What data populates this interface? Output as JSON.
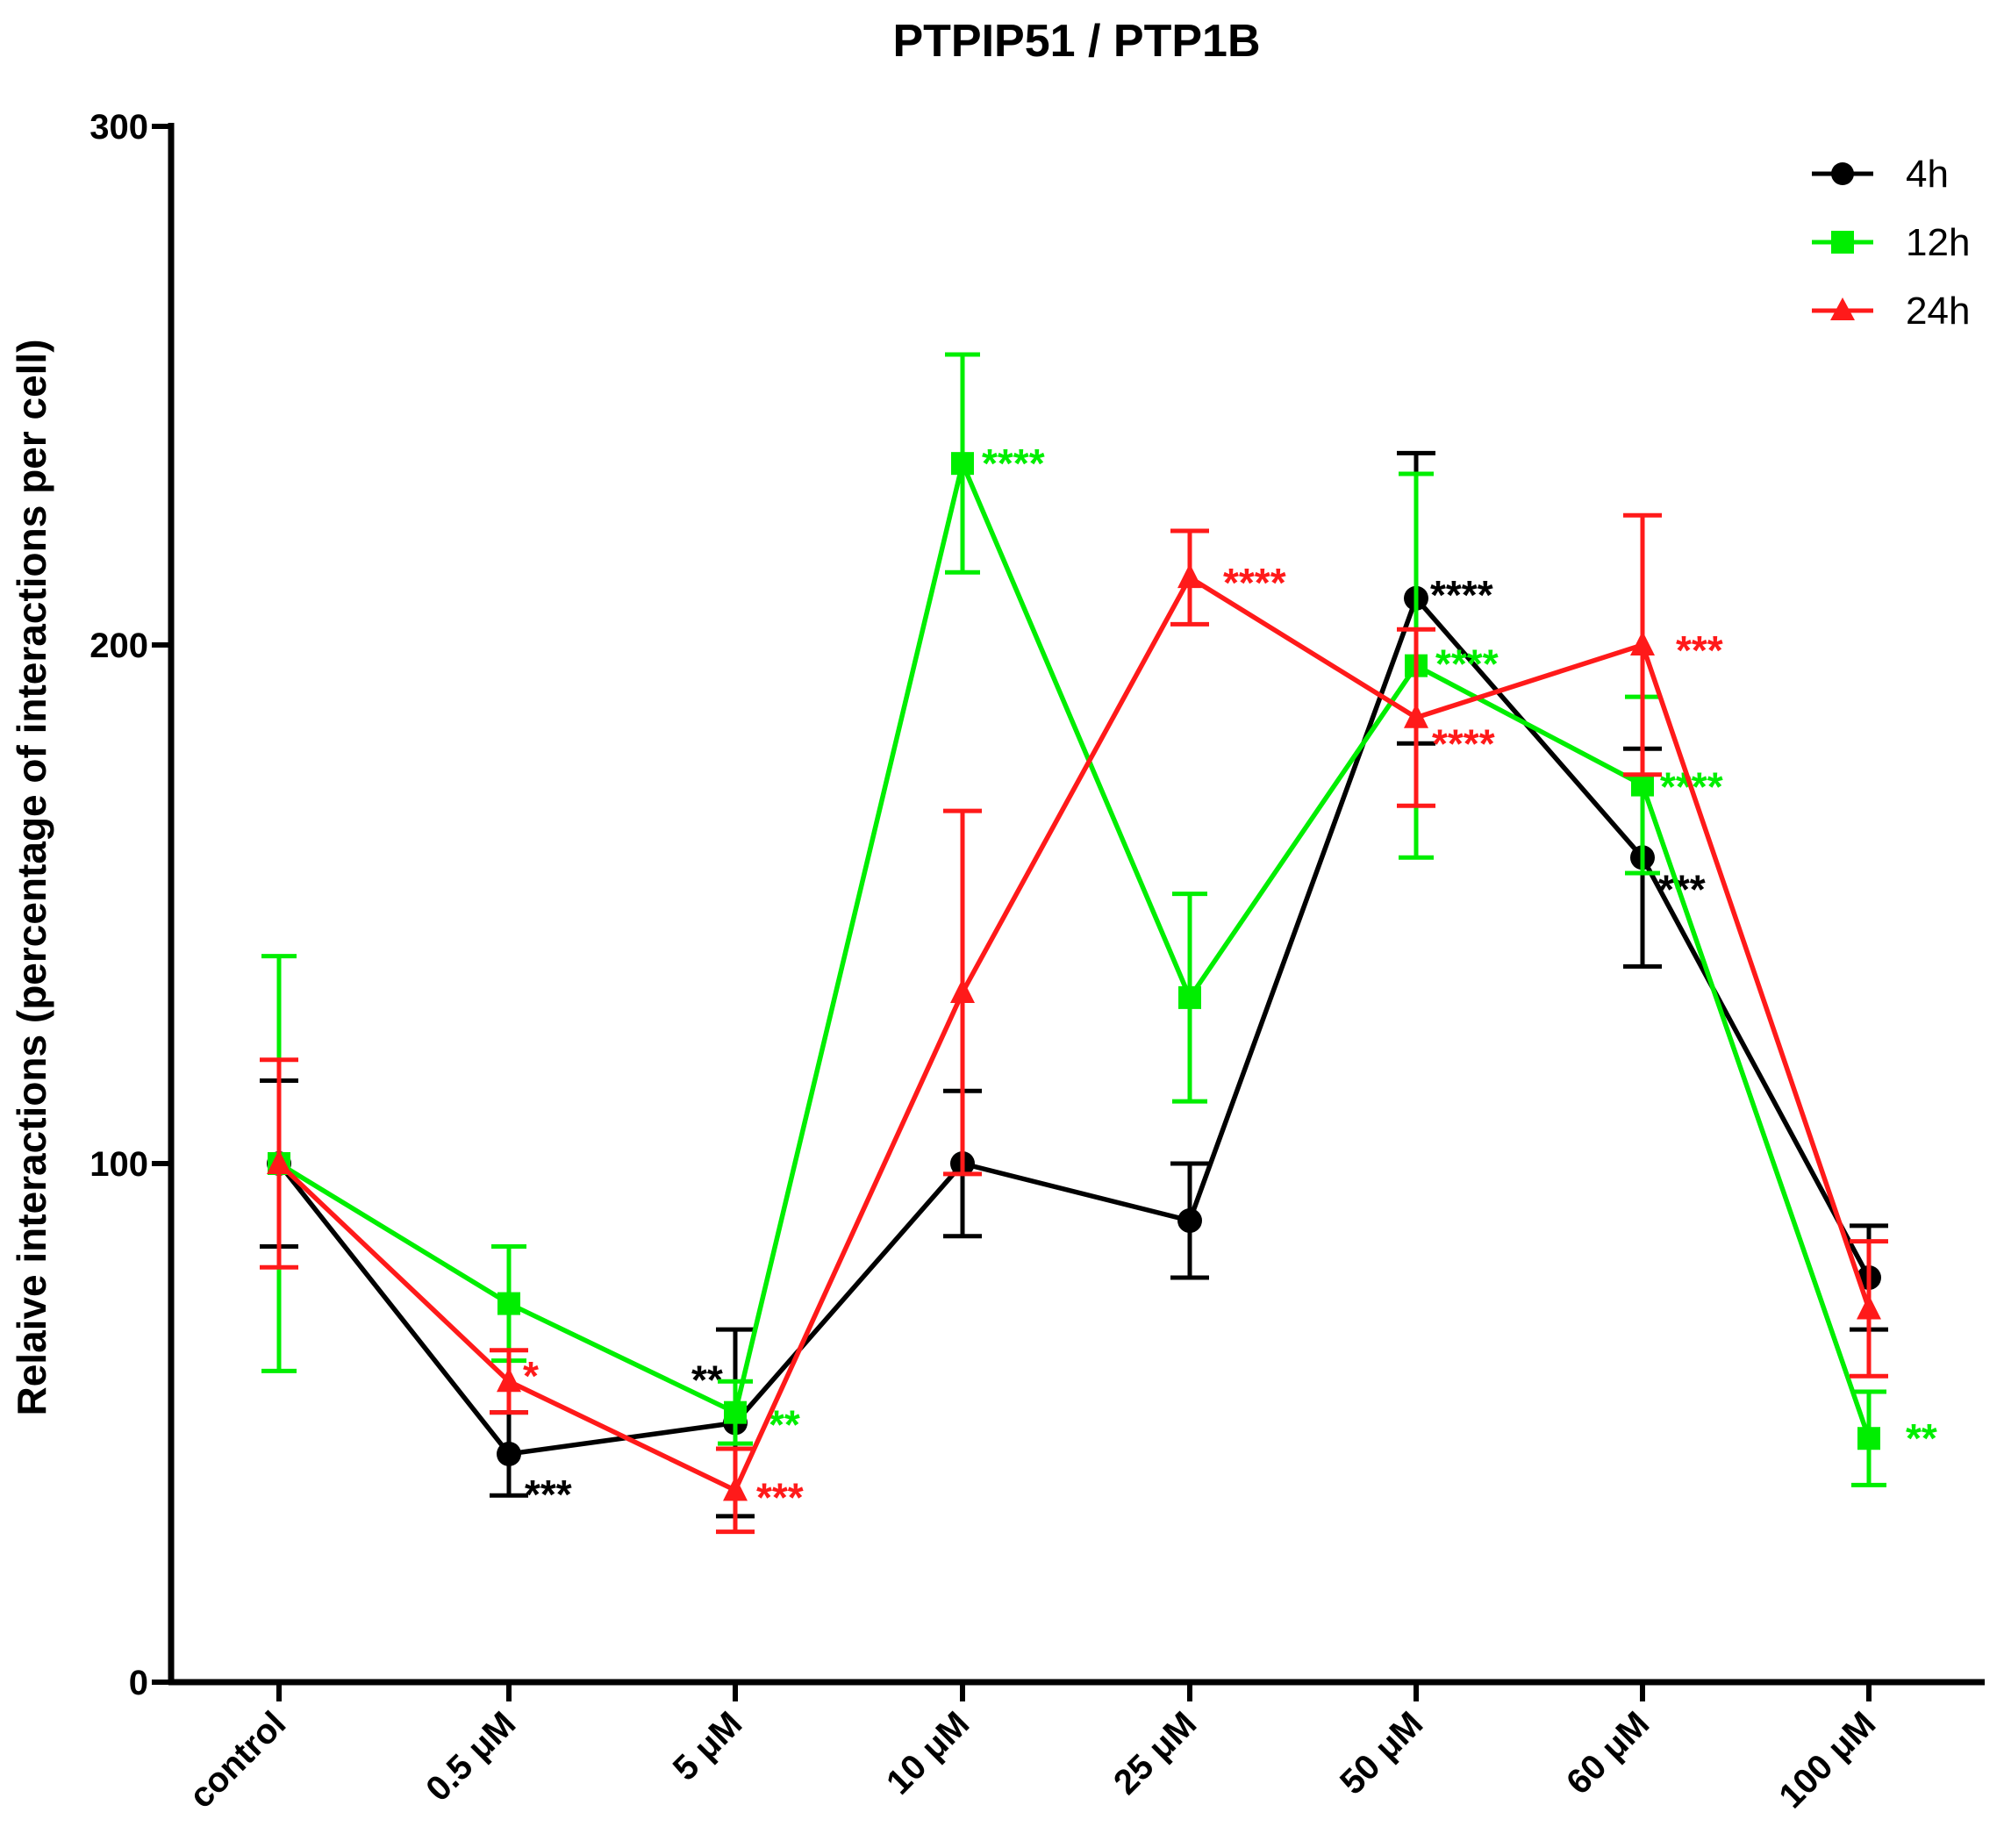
{
  "chart_data": {
    "type": "line",
    "title": "PTPIP51 / PTP1B",
    "xlabel": "",
    "ylabel": "Relaive interactions (percentage of interactions per cell)",
    "ylim": [
      0,
      300
    ],
    "yticks": [
      "0",
      "100",
      "200",
      "300"
    ],
    "categories": [
      "control",
      "0.5 μM",
      "5 μM",
      "10 μM",
      "25 μM",
      "50 μM",
      "60 μM",
      "100 μM"
    ],
    "legend_position": "top-right",
    "series": [
      {
        "name": "4h",
        "color": "#000000",
        "marker": "circle",
        "values": [
          100,
          44,
          50,
          100,
          89,
          209,
          159,
          78
        ],
        "error": [
          16,
          8,
          18,
          14,
          11,
          28,
          21,
          10
        ],
        "significance": [
          "",
          "***",
          "**",
          "",
          "",
          "****",
          "***",
          ""
        ]
      },
      {
        "name": "12h",
        "color": "#00ee00",
        "marker": "square",
        "values": [
          100,
          73,
          52,
          235,
          132,
          196,
          173,
          47
        ],
        "error": [
          40,
          11,
          6,
          21,
          20,
          37,
          17,
          9
        ],
        "significance": [
          "",
          "",
          "**",
          "****",
          "",
          "****",
          "****",
          "**"
        ]
      },
      {
        "name": "24h",
        "color": "#ff1a1a",
        "marker": "triangle",
        "values": [
          100,
          58,
          37,
          133,
          213,
          186,
          200,
          72
        ],
        "error": [
          20,
          6,
          8,
          35,
          9,
          17,
          25,
          13
        ],
        "significance": [
          "",
          "*",
          "***",
          "",
          "****",
          "****",
          "***",
          ""
        ]
      }
    ]
  }
}
